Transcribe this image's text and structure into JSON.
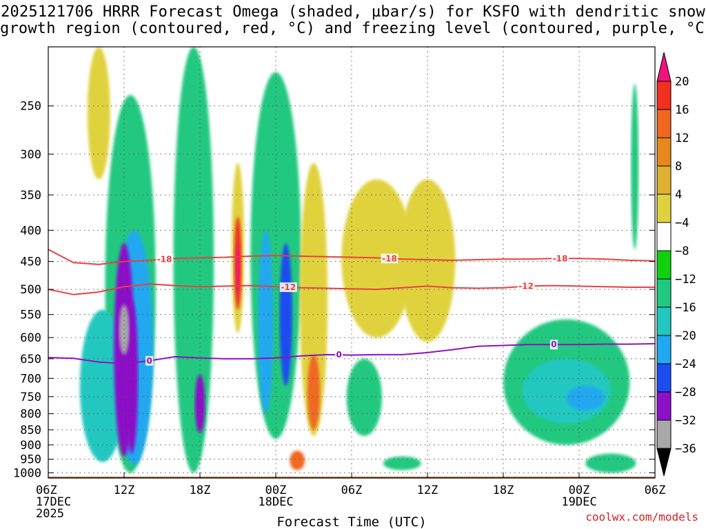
{
  "title": {
    "line1": "2025121706 HRRR Forecast Omega (shaded, µbar/s) for KSFO with dendritic snow",
    "line2": "growth region (contoured, red, °C) and freezing level (contoured, purple, °C)"
  },
  "credit": "coolwx.com/models",
  "chart_data": {
    "type": "heatmap",
    "title": "2025121706 HRRR Forecast Omega (shaded, µbar/s) for KSFO with dendritic snow growth region (contoured, red, °C) and freezing level (contoured, purple, °C)",
    "xlabel": "Forecast Time (UTC)",
    "ylabel": "",
    "x_unit": "forecast hour from 2025-12-17 06Z",
    "xlim": [
      0,
      48
    ],
    "ylim": [
      1020,
      200
    ],
    "x_ticks": [
      {
        "hour": 0,
        "lines": [
          "06Z",
          "17DEC",
          "2025"
        ]
      },
      {
        "hour": 6,
        "lines": [
          "12Z"
        ]
      },
      {
        "hour": 12,
        "lines": [
          "18Z"
        ]
      },
      {
        "hour": 18,
        "lines": [
          "00Z",
          "18DEC"
        ]
      },
      {
        "hour": 24,
        "lines": [
          "06Z"
        ]
      },
      {
        "hour": 30,
        "lines": [
          "12Z"
        ]
      },
      {
        "hour": 36,
        "lines": [
          "18Z"
        ]
      },
      {
        "hour": 42,
        "lines": [
          "00Z",
          "19DEC"
        ]
      },
      {
        "hour": 48,
        "lines": [
          "06Z"
        ]
      }
    ],
    "y_ticks": [
      250,
      300,
      350,
      400,
      450,
      500,
      550,
      600,
      650,
      700,
      750,
      800,
      850,
      900,
      950,
      1000
    ],
    "colorbar": {
      "labels": [
        "20",
        "16",
        "12",
        "8",
        "4",
        "−4",
        "−8",
        "−12",
        "−16",
        "−20",
        "−24",
        "−28",
        "−32",
        "−36"
      ],
      "colors": [
        "#f0147a",
        "#f03020",
        "#f06820",
        "#e8881c",
        "#e0b030",
        "#e0d23c",
        "#ffffff",
        "#10d010",
        "#20c880",
        "#20c8c0",
        "#20a8f0",
        "#1c4cf0",
        "#8c10c8",
        "#a8a8a8"
      ]
    },
    "shading_regions": [
      {
        "hour": 4.0,
        "p_top": 200,
        "p_bottom": 330,
        "width": 0.9,
        "omega": 4
      },
      {
        "hour": 6.5,
        "p_top": 240,
        "p_bottom": 1000,
        "width": 2.0,
        "omega": -8
      },
      {
        "hour": 4.3,
        "p_top": 540,
        "p_bottom": 960,
        "width": 1.8,
        "omega": -12
      },
      {
        "hour": 6.8,
        "p_top": 400,
        "p_bottom": 970,
        "width": 1.5,
        "omega": -16
      },
      {
        "hour": 6.0,
        "p_top": 420,
        "p_bottom": 940,
        "width": 0.8,
        "omega": -24
      },
      {
        "hour": 6.6,
        "p_top": 520,
        "p_bottom": 930,
        "width": 0.5,
        "omega": -28
      },
      {
        "hour": 6.0,
        "p_top": 530,
        "p_bottom": 640,
        "width": 0.4,
        "omega": -32
      },
      {
        "hour": 11.5,
        "p_top": 200,
        "p_bottom": 1000,
        "width": 1.6,
        "omega": -8
      },
      {
        "hour": 12.0,
        "p_top": 690,
        "p_bottom": 860,
        "width": 0.4,
        "omega": -24
      },
      {
        "hour": 15.0,
        "p_top": 310,
        "p_bottom": 590,
        "width": 0.5,
        "omega": 4
      },
      {
        "hour": 15.0,
        "p_top": 380,
        "p_bottom": 540,
        "width": 0.3,
        "omega": 16
      },
      {
        "hour": 15.0,
        "p_top": 420,
        "p_bottom": 510,
        "width": 0.15,
        "omega": 20
      },
      {
        "hour": 18.0,
        "p_top": 220,
        "p_bottom": 880,
        "width": 2.0,
        "omega": -8
      },
      {
        "hour": 17.2,
        "p_top": 400,
        "p_bottom": 800,
        "width": 0.6,
        "omega": -16
      },
      {
        "hour": 18.8,
        "p_top": 420,
        "p_bottom": 720,
        "width": 0.5,
        "omega": -20
      },
      {
        "hour": 21.0,
        "p_top": 310,
        "p_bottom": 870,
        "width": 1.1,
        "omega": 4
      },
      {
        "hour": 21.0,
        "p_top": 640,
        "p_bottom": 850,
        "width": 0.5,
        "omega": 12
      },
      {
        "hour": 19.7,
        "p_top": 920,
        "p_bottom": 990,
        "width": 0.6,
        "omega": 12
      },
      {
        "hour": 26.0,
        "p_top": 330,
        "p_bottom": 600,
        "width": 2.8,
        "omega": 4
      },
      {
        "hour": 30.0,
        "p_top": 330,
        "p_bottom": 610,
        "width": 2.2,
        "omega": 4
      },
      {
        "hour": 25.0,
        "p_top": 650,
        "p_bottom": 870,
        "width": 1.4,
        "omega": -8
      },
      {
        "hour": 28.0,
        "p_top": 940,
        "p_bottom": 990,
        "width": 1.5,
        "omega": -8
      },
      {
        "hour": 41.0,
        "p_top": 560,
        "p_bottom": 900,
        "width": 5.0,
        "omega": -8
      },
      {
        "hour": 41.0,
        "p_top": 650,
        "p_bottom": 830,
        "width": 3.5,
        "omega": -12
      },
      {
        "hour": 42.5,
        "p_top": 720,
        "p_bottom": 790,
        "width": 1.5,
        "omega": -16
      },
      {
        "hour": 46.4,
        "p_top": 230,
        "p_bottom": 430,
        "width": 0.3,
        "omega": -8
      },
      {
        "hour": 44.5,
        "p_top": 930,
        "p_bottom": 1000,
        "width": 2.0,
        "omega": -8
      }
    ],
    "series": [
      {
        "name": "-18",
        "color": "#e84040",
        "x": [
          0,
          2,
          4,
          6,
          8,
          10,
          12,
          14,
          16,
          18,
          20,
          22,
          24,
          26,
          28,
          30,
          32,
          34,
          36,
          38,
          40,
          42,
          44,
          46,
          48
        ],
        "y": [
          430,
          452,
          455,
          450,
          448,
          445,
          444,
          443,
          441,
          440,
          441,
          442,
          443,
          444,
          446,
          447,
          448,
          447,
          446,
          446,
          445,
          445,
          446,
          448,
          449
        ],
        "labels": [
          {
            "hour": 9.2,
            "text": "-18"
          },
          {
            "hour": 27.0,
            "text": "-18"
          },
          {
            "hour": 40.5,
            "text": "-18"
          }
        ]
      },
      {
        "name": "-12",
        "color": "#e84040",
        "x": [
          0,
          2,
          4,
          6,
          8,
          10,
          12,
          14,
          16,
          18,
          20,
          22,
          24,
          26,
          28,
          30,
          32,
          34,
          36,
          38,
          40,
          42,
          44,
          46,
          48
        ],
        "y": [
          500,
          510,
          505,
          495,
          490,
          493,
          495,
          494,
          493,
          495,
          497,
          498,
          499,
          500,
          497,
          494,
          497,
          498,
          497,
          494,
          493,
          494,
          495,
          496,
          496
        ],
        "labels": [
          {
            "hour": 19.0,
            "text": "-12"
          },
          {
            "hour": 37.8,
            "text": "-12"
          }
        ]
      },
      {
        "name": "0",
        "color": "#9010c0",
        "x": [
          0,
          2,
          4,
          6,
          8,
          10,
          12,
          14,
          16,
          18,
          20,
          22,
          24,
          26,
          28,
          30,
          32,
          34,
          36,
          38,
          40,
          42,
          44,
          46,
          48
        ],
        "y": [
          647,
          649,
          658,
          662,
          655,
          645,
          648,
          650,
          650,
          648,
          643,
          640,
          641,
          640,
          640,
          635,
          628,
          620,
          618,
          616,
          616,
          616,
          615,
          615,
          614
        ],
        "labels": [
          {
            "hour": 8.0,
            "text": "0"
          },
          {
            "hour": 23.0,
            "text": "0"
          },
          {
            "hour": 40.0,
            "text": "0"
          }
        ]
      }
    ],
    "surface": {
      "color": "#9c5a2c",
      "pressure": 1015
    }
  }
}
